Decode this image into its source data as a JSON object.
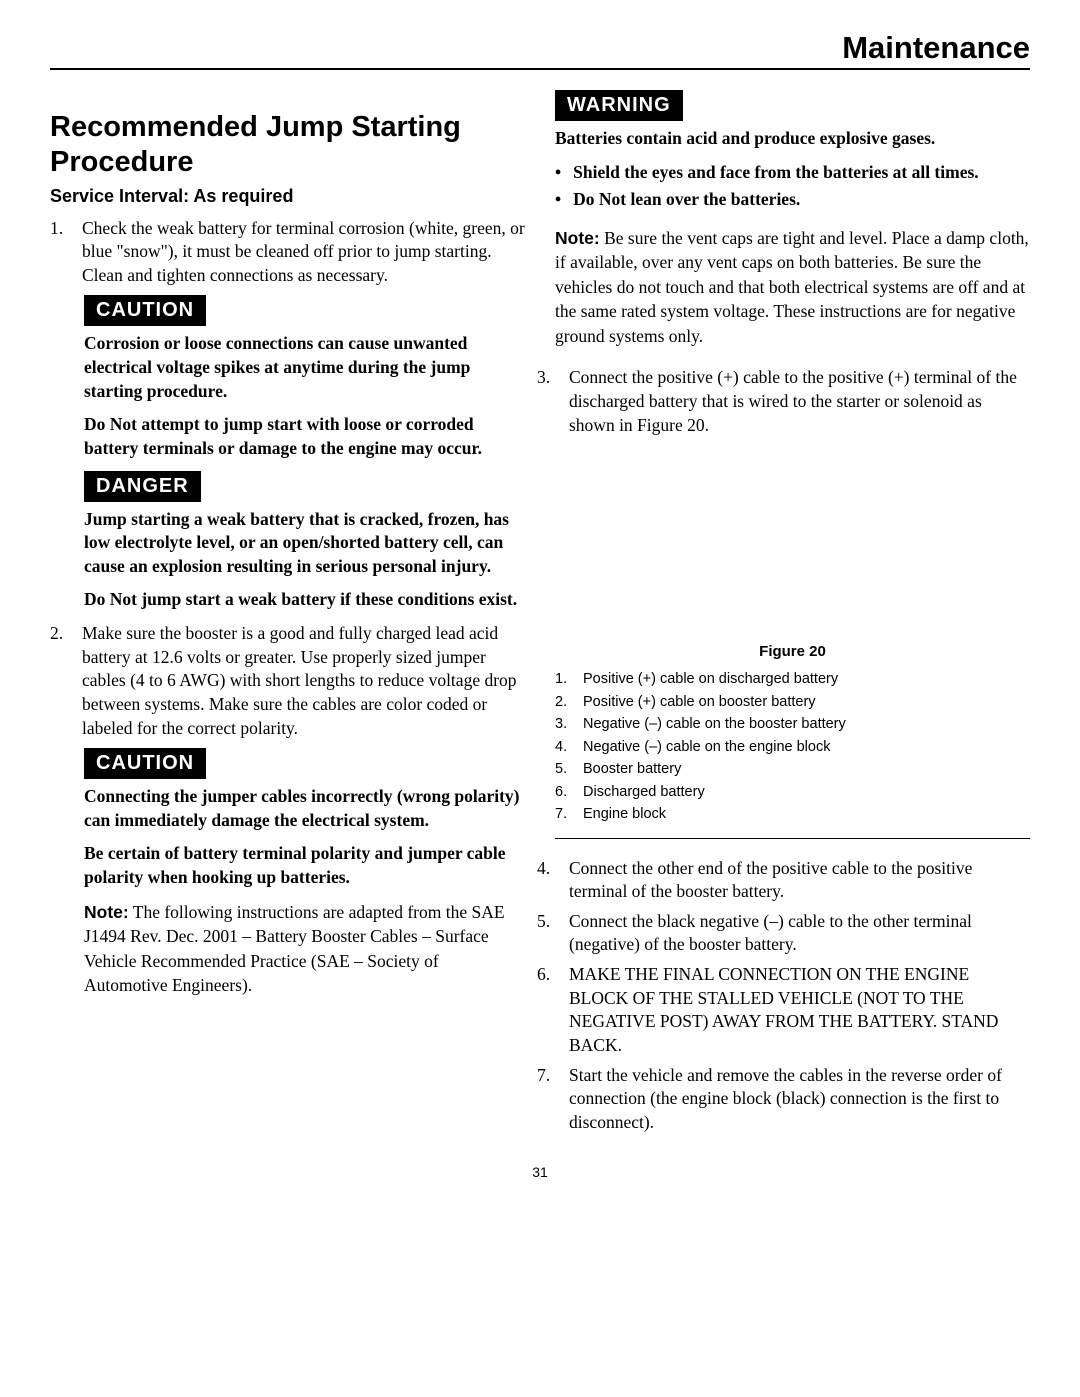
{
  "header": {
    "title": "Maintenance"
  },
  "pageNumber": "31",
  "mainTitle": "Recommended Jump Starting Procedure",
  "serviceInterval": "Service Interval:  As required",
  "step1": {
    "num": "1.",
    "text": "Check the weak battery for terminal corrosion (white, green, or blue \"snow\"), it must be cleaned off prior to jump starting. Clean and tighten connections as necessary."
  },
  "caution1": {
    "label": "CAUTION",
    "p1": "Corrosion or loose connections can cause unwanted electrical voltage spikes at anytime during the jump starting procedure.",
    "p2": "Do Not attempt to jump start with loose or corroded battery terminals or damage to the engine may occur."
  },
  "danger": {
    "label": "DANGER",
    "p1": "Jump starting a weak battery that is cracked, frozen, has low electrolyte level, or an open/shorted battery cell, can cause an explosion resulting in serious personal injury.",
    "p2": "Do Not jump start a weak battery if these conditions exist."
  },
  "step2": {
    "num": "2.",
    "text": "Make sure the booster is a good and fully charged lead acid battery at 12.6 volts or greater. Use properly sized jumper cables (4 to 6 AWG) with short lengths to reduce voltage drop between systems. Make sure the cables are color coded or labeled for the correct polarity."
  },
  "caution2": {
    "label": "CAUTION",
    "p1": "Connecting the jumper cables incorrectly (wrong polarity) can immediately damage the electrical system.",
    "p2": "Be certain of battery terminal polarity and jumper cable polarity when hooking up batteries."
  },
  "note1": {
    "word": "Note:",
    "text": " The following instructions are adapted from the SAE J1494 Rev. Dec. 2001 – Battery Booster Cables – Surface Vehicle Recommended Practice (SAE – Society of Automotive Engineers)."
  },
  "warningRight": {
    "label": "WARNING",
    "p1": "Batteries contain acid and produce explosive gases.",
    "bullets": [
      "Shield the eyes and face from the batteries at all times.",
      "Do Not lean over the batteries."
    ]
  },
  "note2": {
    "word": "Note:",
    "text": " Be sure the vent caps are tight and level. Place a damp cloth, if available, over any vent caps on both batteries. Be sure the vehicles do not touch and that both electrical systems are off and at the same rated system voltage. These instructions are for negative ground systems only."
  },
  "step3": {
    "num": "3.",
    "text": "Connect the positive (+) cable to the positive (+) terminal of the discharged battery that is wired to the starter or solenoid as shown in Figure 20."
  },
  "figure": {
    "caption": "Figure 20",
    "legend": [
      {
        "n": "1.",
        "t": "Positive (+) cable on discharged battery"
      },
      {
        "n": "2.",
        "t": "Positive (+) cable on booster battery"
      },
      {
        "n": "3.",
        "t": "Negative (–) cable on the booster battery"
      },
      {
        "n": "4.",
        "t": "Negative (–) cable on the engine block"
      },
      {
        "n": "5.",
        "t": "Booster battery"
      },
      {
        "n": "6.",
        "t": "Discharged battery"
      },
      {
        "n": "7.",
        "t": "Engine block"
      }
    ]
  },
  "step4": {
    "num": "4.",
    "text": "Connect the other end of the positive cable to the positive terminal of the booster battery."
  },
  "step5": {
    "num": "5.",
    "text": "Connect the black negative (–) cable to the other terminal (negative) of the booster battery."
  },
  "step6": {
    "num": "6.",
    "text": "MAKE THE FINAL CONNECTION ON THE ENGINE BLOCK OF THE STALLED VEHICLE (NOT TO THE NEGATIVE POST) AWAY FROM THE BATTERY. STAND BACK."
  },
  "step7": {
    "num": "7.",
    "text": "Start the vehicle and remove the cables in the reverse order of connection (the engine block (black) connection is the first to disconnect)."
  }
}
